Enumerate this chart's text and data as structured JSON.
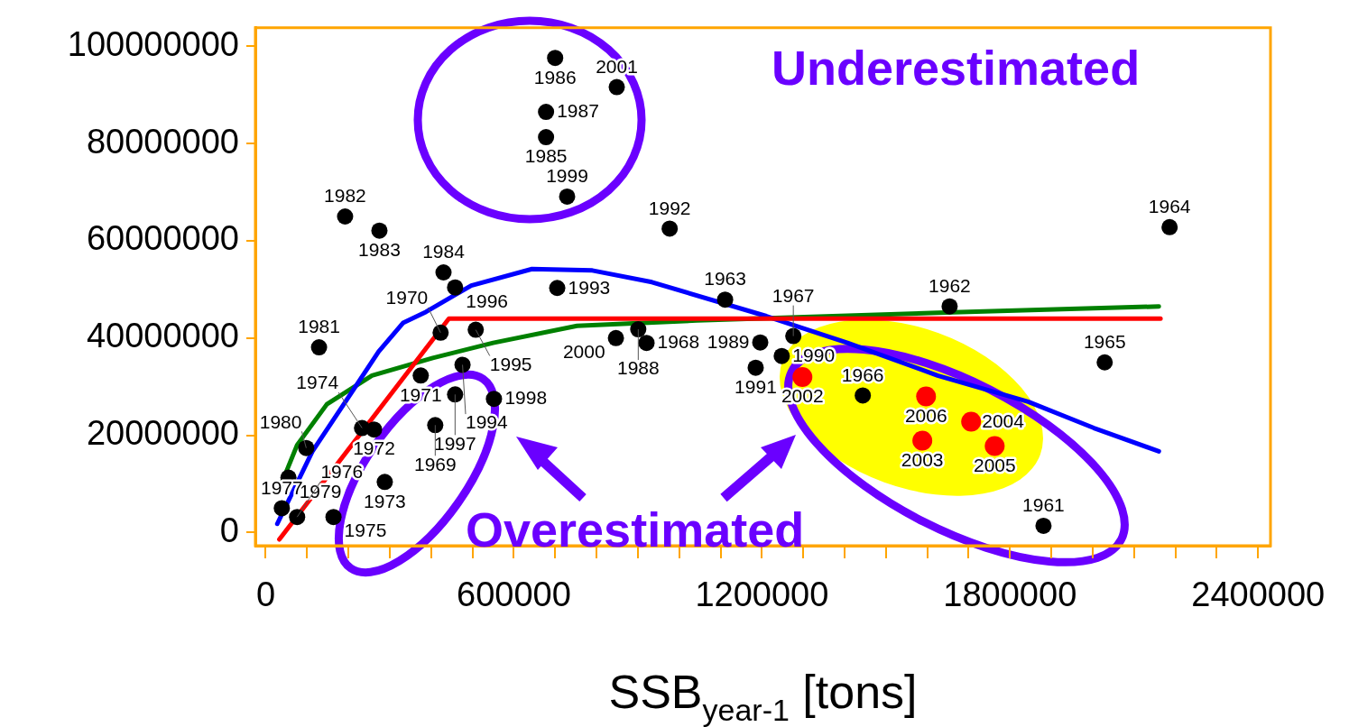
{
  "chart_data": {
    "type": "scatter",
    "xlabel": "SSB$_{year-1}$ [tons]",
    "xlim": [
      -25000,
      2430000
    ],
    "ylim": [
      -2700000,
      103800000
    ],
    "xticks": [
      0,
      {
        "value": 100000,
        "label": null
      },
      {
        "value": 200000,
        "label": null
      },
      {
        "value": 300000,
        "label": null
      },
      {
        "value": 400000,
        "label": null
      },
      {
        "value": 500000,
        "label": null
      },
      600000,
      {
        "value": 700000,
        "label": null
      },
      {
        "value": 800000,
        "label": null
      },
      {
        "value": 900000,
        "label": null
      },
      {
        "value": 1000000,
        "label": null
      },
      {
        "value": 1100000,
        "label": null
      },
      1200000,
      {
        "value": 1300000,
        "label": null
      },
      {
        "value": 1400000,
        "label": null
      },
      {
        "value": 1500000,
        "label": null
      },
      {
        "value": 1600000,
        "label": null
      },
      {
        "value": 1700000,
        "label": null
      },
      1800000,
      {
        "value": 1900000,
        "label": null
      },
      {
        "value": 2000000,
        "label": null
      },
      {
        "value": 2100000,
        "label": null
      },
      {
        "value": 2200000,
        "label": null
      },
      {
        "value": 2300000,
        "label": null
      },
      2400000
    ],
    "yticks": [
      0,
      20000000,
      40000000,
      60000000,
      80000000,
      100000000
    ],
    "grid": false,
    "legend": false,
    "annotations": [
      "Underestimated",
      "Overestimated",
      {
        "text": "1986",
        "x": 700000,
        "y": 97600000
      },
      {
        "text": "2001",
        "x": 849000,
        "y": 91600000
      },
      {
        "text": "1987",
        "x": 678000,
        "y": 86500000
      },
      {
        "text": "1985",
        "x": 678000,
        "y": 81300000
      },
      {
        "text": "1999",
        "x": 729000,
        "y": 69100000
      },
      {
        "text": "1982",
        "x": 192000,
        "y": 65000000
      },
      {
        "text": "1983",
        "x": 275000,
        "y": 62100000
      },
      {
        "text": "1992",
        "x": 977000,
        "y": 62500000
      },
      {
        "text": "1964",
        "x": 2186000,
        "y": 62800000
      },
      {
        "text": "1984",
        "x": 430000,
        "y": 53500000
      },
      {
        "text": "1996",
        "x": 458000,
        "y": 50400000
      },
      {
        "text": "1993",
        "x": 705000,
        "y": 50300000
      },
      {
        "text": "1963",
        "x": 1111000,
        "y": 47900000
      },
      {
        "text": "1962",
        "x": 1654000,
        "y": 46500000
      },
      {
        "text": "1970",
        "x": 423000,
        "y": 41100000
      },
      {
        "text": "1995",
        "x": 508000,
        "y": 41700000
      },
      {
        "text": "2000",
        "x": 847000,
        "y": 40000000
      },
      {
        "text": "1988",
        "x": 901000,
        "y": 41800000
      },
      {
        "text": "1968",
        "x": 921000,
        "y": 39000000
      },
      {
        "text": "1981",
        "x": 129000,
        "y": 38100000
      },
      {
        "text": "1971",
        "x": 375000,
        "y": 32300000
      },
      {
        "text": "1994",
        "x": 476000,
        "y": 34500000
      },
      {
        "text": "1997",
        "x": 458000,
        "y": 28400000
      },
      {
        "text": "1998",
        "x": 552000,
        "y": 27500000
      },
      {
        "text": "1969",
        "x": 410000,
        "y": 22100000
      },
      {
        "text": "1972",
        "x": 262000,
        "y": 21200000
      },
      {
        "text": "1974",
        "x": 233000,
        "y": 21500000
      },
      {
        "text": "1980",
        "x": 98000,
        "y": 17400000
      },
      {
        "text": "1979",
        "x": 55000,
        "y": 11300000
      },
      {
        "text": "1973",
        "x": 288000,
        "y": 10400000
      },
      {
        "text": "1975",
        "x": 164000,
        "y": 3200000
      },
      {
        "text": "1977",
        "x": 39000,
        "y": 5000000
      },
      {
        "text": "1976",
        "x": 76000,
        "y": 3200000
      },
      {
        "text": "1989",
        "x": 1196000,
        "y": 39100000
      },
      {
        "text": "1967",
        "x": 1276000,
        "y": 40400000
      },
      {
        "text": "1990",
        "x": 1248000,
        "y": 36300000
      },
      {
        "text": "1991",
        "x": 1185000,
        "y": 33900000
      },
      {
        "text": "1966",
        "x": 1444000,
        "y": 28200000
      },
      {
        "text": "1961",
        "x": 1881000,
        "y": 1400000
      },
      {
        "text": "1965",
        "x": 2029000,
        "y": 35000000
      },
      {
        "text": "2002",
        "x": 1298000,
        "y": 32000000
      },
      {
        "text": "2006",
        "x": 1597000,
        "y": 28000000
      },
      {
        "text": "2004",
        "x": 1706000,
        "y": 22800000
      },
      {
        "text": "2003",
        "x": 1588000,
        "y": 18900000
      },
      {
        "text": "2005",
        "x": 1763000,
        "y": 17800000
      }
    ],
    "series": [
      {
        "type": "scatter",
        "color": "#000000",
        "marker": "circle",
        "x": [
          700000,
          849000,
          678000,
          678000,
          729000,
          192000,
          275000,
          977000,
          2186000,
          430000,
          458000,
          705000,
          1111000,
          1654000,
          423000,
          508000,
          847000,
          901000,
          921000,
          129000,
          375000,
          476000,
          458000,
          552000,
          410000,
          262000,
          233000,
          98000,
          55000,
          288000,
          164000,
          39000,
          76000,
          1196000,
          1276000,
          1248000,
          1185000,
          1444000,
          1881000,
          2029000
        ],
        "values": [
          97600000,
          91600000,
          86500000,
          81300000,
          69100000,
          65000000,
          62100000,
          62500000,
          62800000,
          53500000,
          50400000,
          50300000,
          47900000,
          46500000,
          41100000,
          41700000,
          40000000,
          41800000,
          39000000,
          38100000,
          32300000,
          34500000,
          28400000,
          27500000,
          22100000,
          21200000,
          21500000,
          17400000,
          11300000,
          10400000,
          3200000,
          5000000,
          3200000,
          39100000,
          40400000,
          36300000,
          33900000,
          28200000,
          1400000,
          35000000
        ]
      },
      {
        "type": "scatter",
        "color": "#ff0000",
        "marker": "circle",
        "x": [
          1298000,
          1597000,
          1706000,
          1588000,
          1763000
        ],
        "values": [
          32000000,
          28000000,
          22800000,
          18900000,
          17800000
        ]
      },
      {
        "type": "line",
        "color": "#ff0000",
        "x": [
          33000,
          443000,
          2164000
        ],
        "values": [
          -1400000,
          44000000,
          44000000
        ]
      },
      {
        "type": "line",
        "color": "#0000ff",
        "x": [
          28000,
          113000,
          207000,
          273000,
          332000,
          388000,
          497000,
          644000,
          790000,
          934000,
          1211000,
          1407000,
          1625000,
          1844000,
          2003000,
          2160000
        ],
        "values": [
          1800000,
          16700000,
          28700000,
          37200000,
          43100000,
          45400000,
          50800000,
          54200000,
          53900000,
          51500000,
          44500000,
          39000000,
          32300000,
          26900000,
          21500000,
          16700000
        ]
      },
      {
        "type": "line",
        "color": "#008000",
        "x": [
          33000,
          76000,
          148000,
          257000,
          404000,
          550000,
          753000,
          1043000,
          1625000,
          2160000
        ],
        "values": [
          9000000,
          18000000,
          26400000,
          32300000,
          35900000,
          39000000,
          42500000,
          43600000,
          45200000,
          46500000
        ]
      }
    ]
  }
}
